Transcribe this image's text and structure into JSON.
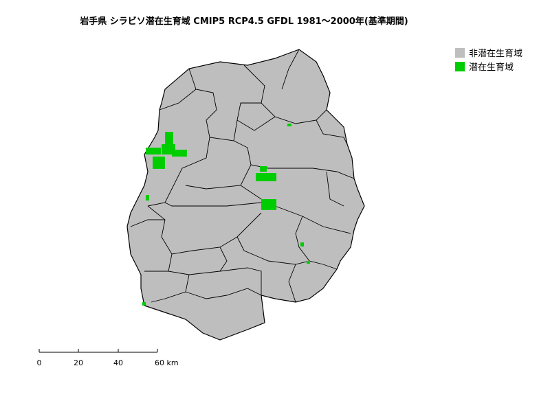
{
  "title": "岩手県 シラビソ潜在生育域 CMIP5 RCP4.5 GFDL 1981～2000年(基準期間)",
  "legend": [
    {
      "label": "非潜在生育域",
      "color": "#bebebe"
    },
    {
      "label": "潜在生育域",
      "color": "#00cd00"
    }
  ],
  "scale_bar": {
    "ticks": [
      "0",
      "20",
      "40",
      "60 km"
    ]
  }
}
